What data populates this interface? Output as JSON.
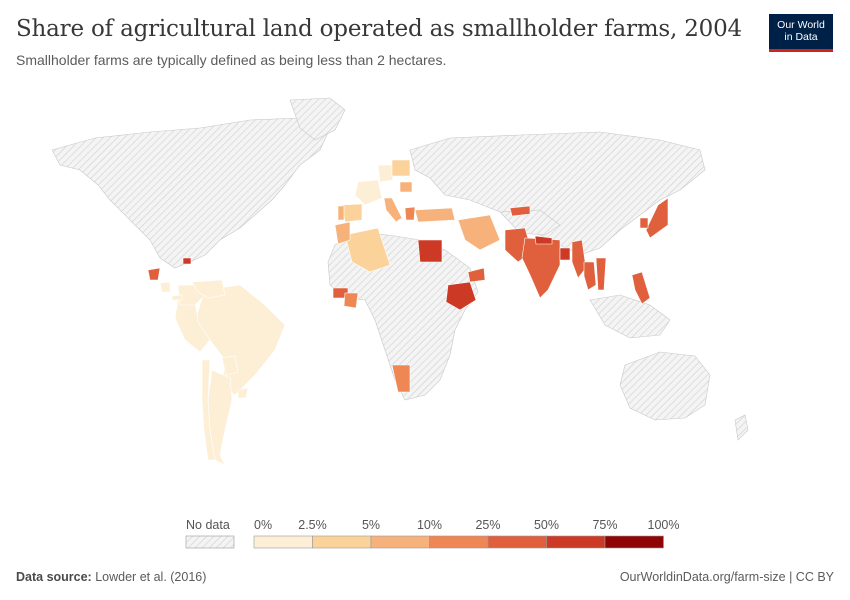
{
  "header": {
    "title": "Share of agricultural land operated as smallholder farms, 2004",
    "subtitle": "Smallholder farms are typically defined as being less than 2 hectares."
  },
  "logo": {
    "line1": "Our World",
    "line2": "in Data"
  },
  "legend": {
    "no_data_label": "No data",
    "ticks": [
      "0%",
      "2.5%",
      "5%",
      "10%",
      "25%",
      "50%",
      "75%",
      "100%"
    ],
    "colors": [
      "#fdefd6",
      "#fbd39a",
      "#f7b27c",
      "#ef8754",
      "#e0603d",
      "#cc3a25",
      "#8f0404"
    ]
  },
  "map": {
    "no_data_color": "#efefef",
    "regions": [
      {
        "name": "Brazil",
        "value": "0-2.5%"
      },
      {
        "name": "Peru",
        "value": "0-2.5%"
      },
      {
        "name": "Colombia",
        "value": "0-2.5%"
      },
      {
        "name": "Venezuela",
        "value": "0-2.5%"
      },
      {
        "name": "Argentina",
        "value": "0-2.5%"
      },
      {
        "name": "Chile",
        "value": "0-2.5%"
      },
      {
        "name": "Paraguay",
        "value": "0-2.5%"
      },
      {
        "name": "Uruguay",
        "value": "0-2.5%"
      },
      {
        "name": "Guatemala",
        "value": "25-50%"
      },
      {
        "name": "Nicaragua",
        "value": "0-2.5%"
      },
      {
        "name": "Panama",
        "value": "0-2.5%"
      },
      {
        "name": "Haiti",
        "value": "50-75%"
      },
      {
        "name": "France",
        "value": "0-2.5%"
      },
      {
        "name": "Germany",
        "value": "0-2.5%"
      },
      {
        "name": "Spain",
        "value": "2.5-5%"
      },
      {
        "name": "Portugal",
        "value": "5-10%"
      },
      {
        "name": "Italy",
        "value": "5-10%"
      },
      {
        "name": "Greece",
        "value": "10-25%"
      },
      {
        "name": "Romania",
        "value": "5-10%"
      },
      {
        "name": "Poland",
        "value": "2.5-5%"
      },
      {
        "name": "Turkey",
        "value": "5-10%"
      },
      {
        "name": "Iran",
        "value": "5-10%"
      },
      {
        "name": "Algeria",
        "value": "2.5-5%"
      },
      {
        "name": "Morocco",
        "value": "5-10%"
      },
      {
        "name": "Egypt",
        "value": "50-75%"
      },
      {
        "name": "Ethiopia",
        "value": "50-75%"
      },
      {
        "name": "Yemen",
        "value": "25-50%"
      },
      {
        "name": "Guinea",
        "value": "25-50%"
      },
      {
        "name": "Cote d'Ivoire",
        "value": "10-25%"
      },
      {
        "name": "Namibia",
        "value": "10-25%"
      },
      {
        "name": "Pakistan",
        "value": "25-50%"
      },
      {
        "name": "India",
        "value": "25-50%"
      },
      {
        "name": "Nepal",
        "value": "50-75%"
      },
      {
        "name": "Bangladesh",
        "value": "50-75%"
      },
      {
        "name": "Myanmar",
        "value": "25-50%"
      },
      {
        "name": "Thailand",
        "value": "25-50%"
      },
      {
        "name": "Vietnam",
        "value": "25-50%"
      },
      {
        "name": "Philippines",
        "value": "25-50%"
      },
      {
        "name": "Japan",
        "value": "25-50%"
      },
      {
        "name": "South Korea",
        "value": "25-50%"
      },
      {
        "name": "Kyrgyzstan",
        "value": "25-50%"
      }
    ]
  },
  "footer": {
    "source_label": "Data source:",
    "source": "Lowder et al. (2016)",
    "url": "OurWorldinData.org/farm-size | CC BY"
  }
}
